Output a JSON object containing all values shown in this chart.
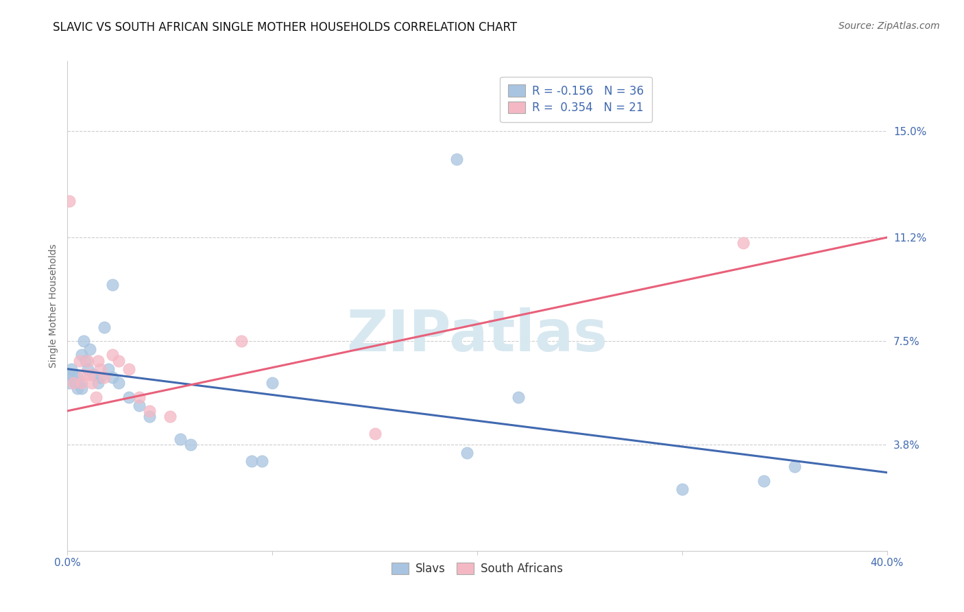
{
  "title": "SLAVIC VS SOUTH AFRICAN SINGLE MOTHER HOUSEHOLDS CORRELATION CHART",
  "source": "Source: ZipAtlas.com",
  "ylabel": "Single Mother Households",
  "xlim": [
    0.0,
    0.4
  ],
  "ylim": [
    0.0,
    0.175
  ],
  "xticks": [
    0.0,
    0.1,
    0.2,
    0.3,
    0.4
  ],
  "xtick_labels": [
    "0.0%",
    "",
    "",
    "",
    "40.0%"
  ],
  "ytick_labels": [
    "3.8%",
    "7.5%",
    "11.2%",
    "15.0%"
  ],
  "ytick_values": [
    0.038,
    0.075,
    0.112,
    0.15
  ],
  "grid_color": "#cccccc",
  "slavs_color": "#a8c4e0",
  "south_africans_color": "#f4b8c4",
  "slavs_line_color": "#4169b0",
  "south_africans_line_color": "#e8607a",
  "legend_R_slavs": "-0.156",
  "legend_N_slavs": "36",
  "legend_R_sa": "0.354",
  "legend_N_sa": "21",
  "slavs_x": [
    0.001,
    0.001,
    0.002,
    0.003,
    0.004,
    0.005,
    0.005,
    0.006,
    0.007,
    0.007,
    0.008,
    0.009,
    0.01,
    0.011,
    0.013,
    0.015,
    0.016,
    0.018,
    0.02,
    0.022,
    0.025,
    0.03,
    0.035,
    0.04,
    0.055,
    0.06,
    0.09,
    0.095,
    0.19,
    0.22,
    0.3,
    0.355,
    0.022,
    0.1,
    0.195,
    0.34
  ],
  "slavs_y": [
    0.06,
    0.063,
    0.065,
    0.063,
    0.06,
    0.062,
    0.058,
    0.06,
    0.058,
    0.07,
    0.075,
    0.068,
    0.065,
    0.072,
    0.063,
    0.06,
    0.062,
    0.08,
    0.065,
    0.062,
    0.06,
    0.055,
    0.052,
    0.048,
    0.04,
    0.038,
    0.032,
    0.032,
    0.14,
    0.055,
    0.022,
    0.03,
    0.095,
    0.06,
    0.035,
    0.025
  ],
  "sa_x": [
    0.001,
    0.003,
    0.006,
    0.007,
    0.008,
    0.01,
    0.011,
    0.012,
    0.014,
    0.015,
    0.016,
    0.018,
    0.022,
    0.025,
    0.03,
    0.035,
    0.04,
    0.05,
    0.085,
    0.15,
    0.33
  ],
  "sa_y": [
    0.125,
    0.06,
    0.068,
    0.06,
    0.063,
    0.068,
    0.063,
    0.06,
    0.055,
    0.068,
    0.065,
    0.062,
    0.07,
    0.068,
    0.065,
    0.055,
    0.05,
    0.048,
    0.075,
    0.042,
    0.11
  ],
  "slavs_trendline_x": [
    0.0,
    0.4
  ],
  "slavs_trendline_y": [
    0.065,
    0.028
  ],
  "sa_trendline_x": [
    0.0,
    0.4
  ],
  "sa_trendline_y": [
    0.05,
    0.112
  ],
  "background_color": "#ffffff",
  "title_fontsize": 12,
  "axis_label_fontsize": 10,
  "tick_fontsize": 11,
  "legend_fontsize": 12,
  "source_fontsize": 10
}
